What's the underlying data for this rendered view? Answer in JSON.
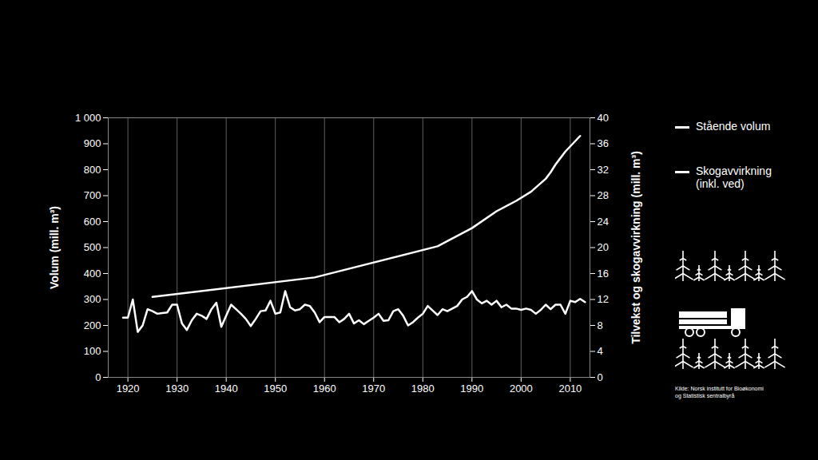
{
  "chart_data": {
    "type": "line",
    "ylabel": "Volum (mill. m³)",
    "y2label": "Tilvekst og skogavvirkning (mill. m³)",
    "source": "Kilde: Norsk institutt for Bioøkonomi og Statistisk sentralbyrå",
    "xlim": [
      1916,
      2014
    ],
    "xticks": [
      1920,
      1930,
      1940,
      1950,
      1960,
      1970,
      1980,
      1990,
      2000,
      2010
    ],
    "ylim": [
      0,
      1000
    ],
    "yticks": [
      0,
      100,
      200,
      300,
      400,
      500,
      600,
      700,
      800,
      900,
      {
        "value": 1000,
        "label": "1 000"
      }
    ],
    "y2lim": [
      0,
      40
    ],
    "y2ticks": [
      0,
      4,
      8,
      12,
      16,
      20,
      24,
      28,
      32,
      36,
      40
    ],
    "grid": "x",
    "legend": "right",
    "series": [
      {
        "name": "Stående volum",
        "color": "#ffffff",
        "axis": "y",
        "x": [
          1925,
          1958,
          1983,
          1990,
          1995,
          1999,
          2002,
          2005,
          2006,
          2007,
          2008,
          2009,
          2010,
          2011,
          2012
        ],
        "values": [
          310,
          385,
          505,
          575,
          640,
          680,
          715,
          765,
          790,
          820,
          845,
          870,
          890,
          910,
          930
        ]
      },
      {
        "name": "Skogavvirkning (inkl. ved)",
        "color": "#ffffff",
        "axis": "y2",
        "x": [
          1919,
          1920,
          1921,
          1922,
          1923,
          1924,
          1925,
          1926,
          1927,
          1928,
          1929,
          1930,
          1931,
          1932,
          1933,
          1934,
          1935,
          1936,
          1937,
          1938,
          1939,
          1940,
          1941,
          1942,
          1943,
          1944,
          1945,
          1946,
          1947,
          1948,
          1949,
          1950,
          1951,
          1952,
          1953,
          1954,
          1955,
          1956,
          1957,
          1958,
          1959,
          1960,
          1961,
          1962,
          1963,
          1964,
          1965,
          1966,
          1967,
          1968,
          1969,
          1970,
          1971,
          1972,
          1973,
          1974,
          1975,
          1976,
          1977,
          1978,
          1979,
          1980,
          1981,
          1982,
          1983,
          1984,
          1985,
          1986,
          1987,
          1988,
          1989,
          1990,
          1991,
          1992,
          1993,
          1994,
          1995,
          1996,
          1997,
          1998,
          1999,
          2000,
          2001,
          2002,
          2003,
          2004,
          2005,
          2006,
          2007,
          2008,
          2009,
          2010,
          2011,
          2012,
          2013
        ],
        "values": [
          9.2,
          9.2,
          12,
          7,
          8,
          10.5,
          10.2,
          9.8,
          9.9,
          10,
          11.2,
          11.2,
          8.3,
          7.3,
          8.8,
          9.8,
          9.5,
          9,
          10.5,
          11.5,
          7.8,
          9.5,
          11.2,
          10.5,
          9.8,
          9,
          7.9,
          9,
          10.2,
          10.3,
          11.8,
          9.8,
          10,
          13.3,
          10.8,
          10.3,
          10.5,
          11.2,
          11,
          10,
          8.5,
          9.3,
          9.3,
          9.3,
          8.5,
          9,
          9.8,
          8.3,
          8.8,
          8.2,
          8.7,
          9.2,
          9.8,
          8.7,
          8.8,
          10.2,
          10.5,
          9.5,
          8,
          8.5,
          9.2,
          9.8,
          11,
          10.3,
          9.6,
          10.5,
          10.2,
          10.6,
          11,
          12,
          12.4,
          13.3,
          12,
          11.4,
          11.8,
          11.2,
          11.8,
          10.8,
          11.2,
          10.6,
          10.6,
          10.4,
          10.6,
          10.4,
          9.8,
          10.4,
          11.2,
          10.5,
          11.2,
          11.2,
          9.8,
          11.8,
          11.6,
          12.1,
          11.6
        ]
      }
    ]
  }
}
